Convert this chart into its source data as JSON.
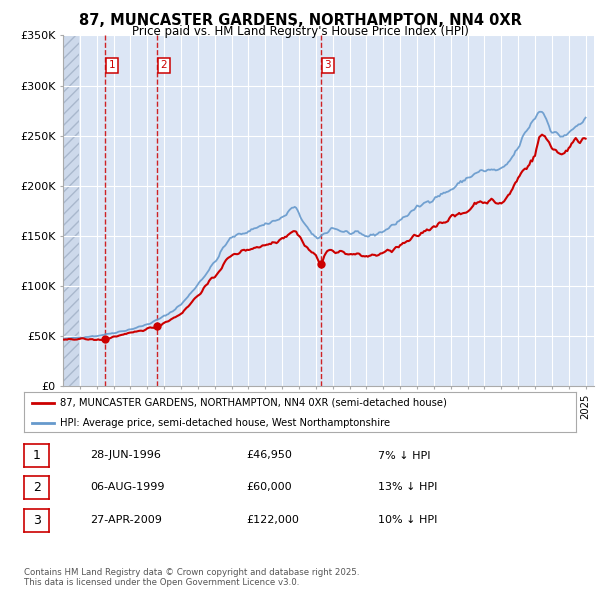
{
  "title": "87, MUNCASTER GARDENS, NORTHAMPTON, NN4 0XR",
  "subtitle": "Price paid vs. HM Land Registry's House Price Index (HPI)",
  "legend_label_red": "87, MUNCASTER GARDENS, NORTHAMPTON, NN4 0XR (semi-detached house)",
  "legend_label_blue": "HPI: Average price, semi-detached house, West Northamptonshire",
  "footer": "Contains HM Land Registry data © Crown copyright and database right 2025.\nThis data is licensed under the Open Government Licence v3.0.",
  "sales": [
    {
      "num": 1,
      "date": "28-JUN-1996",
      "price": 46950,
      "hpi_note": "7% ↓ HPI",
      "year": 1996.5
    },
    {
      "num": 2,
      "date": "06-AUG-1999",
      "price": 60000,
      "hpi_note": "13% ↓ HPI",
      "year": 1999.58
    },
    {
      "num": 3,
      "date": "27-APR-2009",
      "price": 122000,
      "hpi_note": "10% ↓ HPI",
      "year": 2009.32
    }
  ],
  "hpi_color": "#6699cc",
  "price_color": "#cc0000",
  "marker_color": "#cc0000",
  "vline_color": "#cc0000",
  "ylim": [
    0,
    350000
  ],
  "xlim": [
    1994.0,
    2025.5
  ],
  "yticks": [
    0,
    50000,
    100000,
    150000,
    200000,
    250000,
    300000,
    350000
  ],
  "ytick_labels": [
    "£0",
    "£50K",
    "£100K",
    "£150K",
    "£200K",
    "£250K",
    "£300K",
    "£350K"
  ],
  "background_color": "#ffffff",
  "plot_bg_color": "#dce6f5",
  "grid_color": "#ffffff"
}
